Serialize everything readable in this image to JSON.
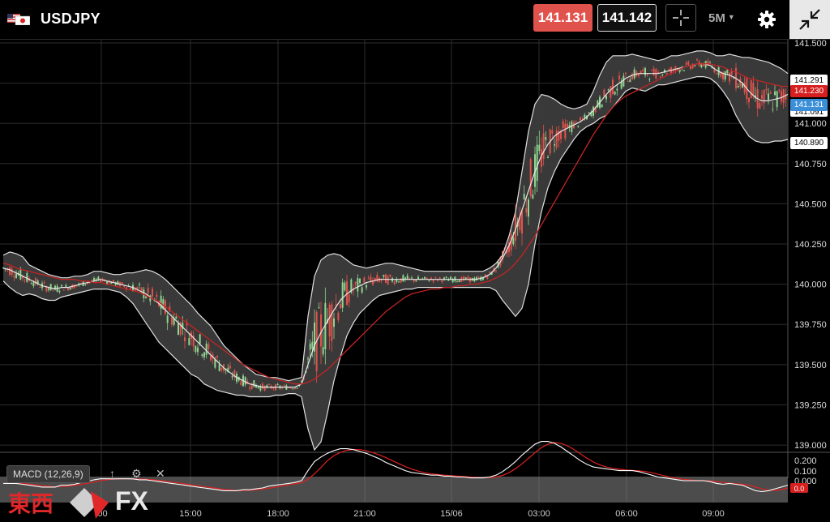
{
  "header": {
    "symbol": "USDJPY",
    "bid": "141.131",
    "ask": "141.142",
    "timeframe": "5M",
    "flag_icons": [
      "us-flag-icon",
      "japan-flag-icon"
    ],
    "crosshair_icon": "crosshair-icon",
    "settings_icon": "gear-icon",
    "fullscreen_icon": "collapse-arrows-icon"
  },
  "colors": {
    "bid": "#e0524c",
    "up_candle": "#8fd48f",
    "down_candle": "#e0524c",
    "ma_line": "#c42424",
    "bands": "#dddddd",
    "current_price_label": "#3a8fd8",
    "red_label": "#d62020"
  },
  "price_labels": {
    "upper_band": "141.291",
    "red_line": "141.230",
    "current": "141.131",
    "hidden": "141.091",
    "lower_band": "140.890"
  },
  "macd": {
    "label": "MACD (12,26,9)",
    "levels": [
      "0.200",
      "0.100",
      "0.000"
    ],
    "current_label": "0.0"
  },
  "logo": {
    "kanji": "東西",
    "fx": "FX"
  },
  "chart_data": {
    "type": "line",
    "x_tick_labels": [
      ":00",
      "15:00",
      "18:00",
      "21:00",
      "15/06",
      "03:00",
      "06:00",
      "09:00"
    ],
    "y_tick_labels": [
      "141.500",
      "141.250",
      "141.000",
      "140.750",
      "140.500",
      "140.250",
      "140.000",
      "139.750",
      "139.500",
      "139.250",
      "139.000"
    ],
    "ylim": [
      138.96,
      141.52
    ],
    "x": [
      0,
      8,
      16,
      24,
      32,
      40,
      48,
      56,
      64,
      72,
      80,
      88,
      96,
      104,
      112,
      120,
      128,
      136,
      144,
      152,
      160,
      168,
      176,
      184,
      192,
      200,
      208,
      216,
      224,
      232,
      240,
      248,
      256,
      264,
      272,
      280,
      288,
      296,
      304,
      312,
      320,
      328,
      336,
      344,
      352,
      360,
      368,
      376,
      384,
      392,
      400,
      408,
      416,
      424,
      432,
      440,
      448,
      456,
      464,
      472,
      480,
      488,
      496,
      504,
      512,
      520,
      528,
      536,
      544,
      552,
      560,
      568,
      576,
      584,
      592,
      600,
      608,
      616,
      624,
      632,
      640,
      648,
      656,
      664,
      672,
      680,
      688,
      696,
      704,
      712,
      720,
      728,
      736,
      744,
      752,
      760,
      768,
      776,
      784,
      792,
      800,
      808,
      816,
      824,
      832,
      840,
      848,
      856,
      864,
      872,
      880,
      888,
      896,
      904,
      912,
      920,
      928,
      936,
      944,
      952,
      960,
      968
    ],
    "series": [
      {
        "role": "bollinger-upper",
        "values": [
          140.18,
          140.2,
          140.19,
          140.17,
          140.12,
          140.1,
          140.08,
          140.06,
          140.05,
          140.04,
          140.04,
          140.05,
          140.05,
          140.06,
          140.08,
          140.08,
          140.07,
          140.06,
          140.06,
          140.07,
          140.07,
          140.08,
          140.09,
          140.08,
          140.06,
          140.03,
          139.99,
          139.95,
          139.91,
          139.87,
          139.82,
          139.78,
          139.74,
          139.68,
          139.62,
          139.58,
          139.54,
          139.5,
          139.47,
          139.44,
          139.43,
          139.42,
          139.42,
          139.41,
          139.4,
          139.41,
          139.42,
          139.8,
          140.05,
          140.15,
          140.18,
          140.19,
          140.18,
          140.15,
          140.12,
          140.11,
          140.1,
          140.11,
          140.12,
          140.13,
          140.13,
          140.12,
          140.11,
          140.1,
          140.09,
          140.08,
          140.08,
          140.08,
          140.08,
          140.08,
          140.08,
          140.08,
          140.08,
          140.08,
          140.08,
          140.1,
          140.13,
          140.18,
          140.3,
          140.45,
          140.7,
          140.95,
          141.12,
          141.18,
          141.17,
          141.15,
          141.12,
          141.1,
          141.09,
          141.1,
          141.12,
          141.2,
          141.3,
          141.38,
          141.42,
          141.42,
          141.42,
          141.43,
          141.42,
          141.41,
          141.4,
          141.39,
          141.4,
          141.42,
          141.42,
          141.43,
          141.44,
          141.45,
          141.45,
          141.44,
          141.42,
          141.42,
          141.43,
          141.42,
          141.41,
          141.41,
          141.4,
          141.39,
          141.38,
          141.36,
          141.34,
          141.31
        ]
      },
      {
        "role": "bollinger-middle",
        "values": [
          140.1,
          140.09,
          140.07,
          140.05,
          140.03,
          140.01,
          139.99,
          139.98,
          139.97,
          139.98,
          139.98,
          139.99,
          140,
          140.01,
          140.02,
          140.03,
          140.02,
          140.01,
          140,
          139.99,
          139.98,
          139.96,
          139.94,
          139.91,
          139.88,
          139.84,
          139.8,
          139.76,
          139.72,
          139.68,
          139.64,
          139.6,
          139.56,
          139.52,
          139.48,
          139.45,
          139.42,
          139.4,
          139.38,
          139.37,
          139.36,
          139.36,
          139.36,
          139.36,
          139.36,
          139.36,
          139.38,
          139.5,
          139.62,
          139.7,
          139.77,
          139.84,
          139.9,
          139.94,
          139.97,
          139.99,
          140.01,
          140.02,
          140.03,
          140.03,
          140.03,
          140.03,
          140.03,
          140.03,
          140.03,
          140.03,
          140.03,
          140.03,
          140.03,
          140.03,
          140.03,
          140.03,
          140.03,
          140.03,
          140.04,
          140.06,
          140.1,
          140.16,
          140.24,
          140.34,
          140.46,
          140.58,
          140.7,
          140.8,
          140.87,
          140.92,
          140.95,
          140.97,
          140.99,
          141.01,
          141.04,
          141.08,
          141.13,
          141.18,
          141.22,
          141.25,
          141.28,
          141.3,
          141.31,
          141.31,
          141.31,
          141.31,
          141.32,
          141.33,
          141.34,
          141.35,
          141.36,
          141.37,
          141.37,
          141.36,
          141.33,
          141.31,
          141.3,
          141.28,
          141.25,
          141.2,
          141.16,
          141.14,
          141.14,
          141.15,
          141.16,
          141.18
        ]
      },
      {
        "role": "bollinger-lower",
        "values": [
          140.02,
          139.98,
          139.95,
          139.93,
          139.94,
          139.93,
          139.91,
          139.9,
          139.9,
          139.92,
          139.93,
          139.94,
          139.95,
          139.96,
          139.97,
          139.97,
          139.97,
          139.96,
          139.95,
          139.92,
          139.88,
          139.82,
          139.76,
          139.7,
          139.64,
          139.6,
          139.56,
          139.52,
          139.48,
          139.44,
          139.42,
          139.38,
          139.36,
          139.34,
          139.33,
          139.32,
          139.31,
          139.31,
          139.3,
          139.3,
          139.3,
          139.3,
          139.31,
          139.31,
          139.32,
          139.32,
          139.3,
          139.1,
          138.97,
          139.02,
          139.2,
          139.4,
          139.55,
          139.68,
          139.76,
          139.82,
          139.86,
          139.9,
          139.93,
          139.94,
          139.95,
          139.96,
          139.97,
          139.97,
          139.98,
          139.98,
          139.98,
          139.98,
          139.98,
          139.98,
          139.98,
          139.98,
          139.98,
          139.98,
          139.98,
          139.98,
          139.96,
          139.9,
          139.85,
          139.8,
          139.85,
          140,
          140.25,
          140.45,
          140.6,
          140.7,
          140.78,
          140.84,
          140.9,
          140.95,
          140.98,
          141.0,
          141.03,
          141.05,
          141.1,
          141.15,
          141.2,
          141.22,
          141.21,
          141.2,
          141.22,
          141.24,
          141.24,
          141.25,
          141.26,
          141.27,
          141.28,
          141.29,
          141.29,
          141.28,
          141.25,
          141.2,
          141.14,
          141.05,
          140.98,
          140.92,
          140.89,
          140.88,
          140.88,
          140.89,
          140.89,
          140.9
        ]
      },
      {
        "role": "moving-average",
        "values": [
          140.13,
          140.12,
          140.1,
          140.09,
          140.08,
          140.07,
          140.06,
          140.05,
          140.04,
          140.03,
          140.03,
          140.03,
          140.02,
          140.02,
          140.01,
          140.01,
          140.0,
          139.99,
          139.98,
          139.97,
          139.96,
          139.95,
          139.93,
          139.91,
          139.89,
          139.86,
          139.83,
          139.8,
          139.77,
          139.74,
          139.71,
          139.68,
          139.65,
          139.62,
          139.59,
          139.56,
          139.53,
          139.5,
          139.48,
          139.46,
          139.44,
          139.42,
          139.41,
          139.4,
          139.39,
          139.38,
          139.38,
          139.39,
          139.41,
          139.44,
          139.47,
          139.51,
          139.55,
          139.59,
          139.63,
          139.67,
          139.71,
          139.75,
          139.79,
          139.83,
          139.86,
          139.89,
          139.92,
          139.94,
          139.95,
          139.96,
          139.97,
          139.97,
          139.98,
          139.98,
          139.99,
          139.99,
          140.0,
          140.0,
          140.01,
          140.02,
          140.04,
          140.06,
          140.09,
          140.13,
          140.18,
          140.24,
          140.3,
          140.37,
          140.44,
          140.51,
          140.58,
          140.65,
          140.72,
          140.79,
          140.86,
          140.93,
          140.99,
          141.05,
          141.1,
          141.14,
          141.17,
          141.19,
          141.21,
          141.23,
          141.25,
          141.27,
          141.29,
          141.31,
          141.33,
          141.35,
          141.36,
          141.37,
          141.37,
          141.37,
          141.36,
          141.35,
          141.33,
          141.32,
          141.3,
          141.28,
          141.27,
          141.26,
          141.25,
          141.24,
          141.23,
          141.23
        ]
      }
    ]
  }
}
